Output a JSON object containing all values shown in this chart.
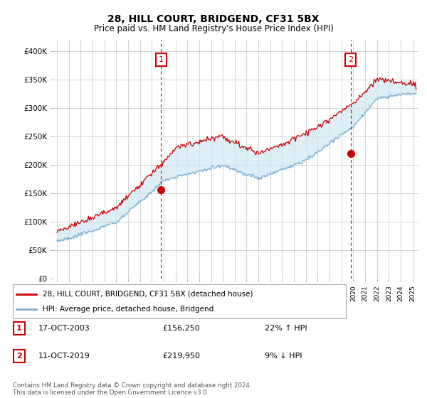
{
  "title": "28, HILL COURT, BRIDGEND, CF31 5BX",
  "subtitle": "Price paid vs. HM Land Registry's House Price Index (HPI)",
  "title_fontsize": 10,
  "subtitle_fontsize": 8.5,
  "ylabel_ticks": [
    "£0",
    "£50K",
    "£100K",
    "£150K",
    "£200K",
    "£250K",
    "£300K",
    "£350K",
    "£400K"
  ],
  "ytick_values": [
    0,
    50000,
    100000,
    150000,
    200000,
    250000,
    300000,
    350000,
    400000
  ],
  "ylim": [
    0,
    420000
  ],
  "xlim_start": 1994.7,
  "xlim_end": 2025.5,
  "sale1_x": 2003.79,
  "sale1_y": 156250,
  "sale1_label": "1",
  "sale1_date": "17-OCT-2003",
  "sale1_price": "£156,250",
  "sale1_hpi": "22% ↑ HPI",
  "sale2_x": 2019.78,
  "sale2_y": 219950,
  "sale2_label": "2",
  "sale2_date": "11-OCT-2019",
  "sale2_price": "£219,950",
  "sale2_hpi": "9% ↓ HPI",
  "hpi_line_color": "#7aaad0",
  "price_line_color": "#cc0000",
  "fill_color": "#d0e8f5",
  "dashed_line_color": "#cc0000",
  "marker_box_color": "#cc0000",
  "legend_label_price": "28, HILL COURT, BRIDGEND, CF31 5BX (detached house)",
  "legend_label_hpi": "HPI: Average price, detached house, Bridgend",
  "footer": "Contains HM Land Registry data © Crown copyright and database right 2024.\nThis data is licensed under the Open Government Licence v3.0.",
  "background_color": "#ffffff",
  "grid_color": "#cccccc"
}
